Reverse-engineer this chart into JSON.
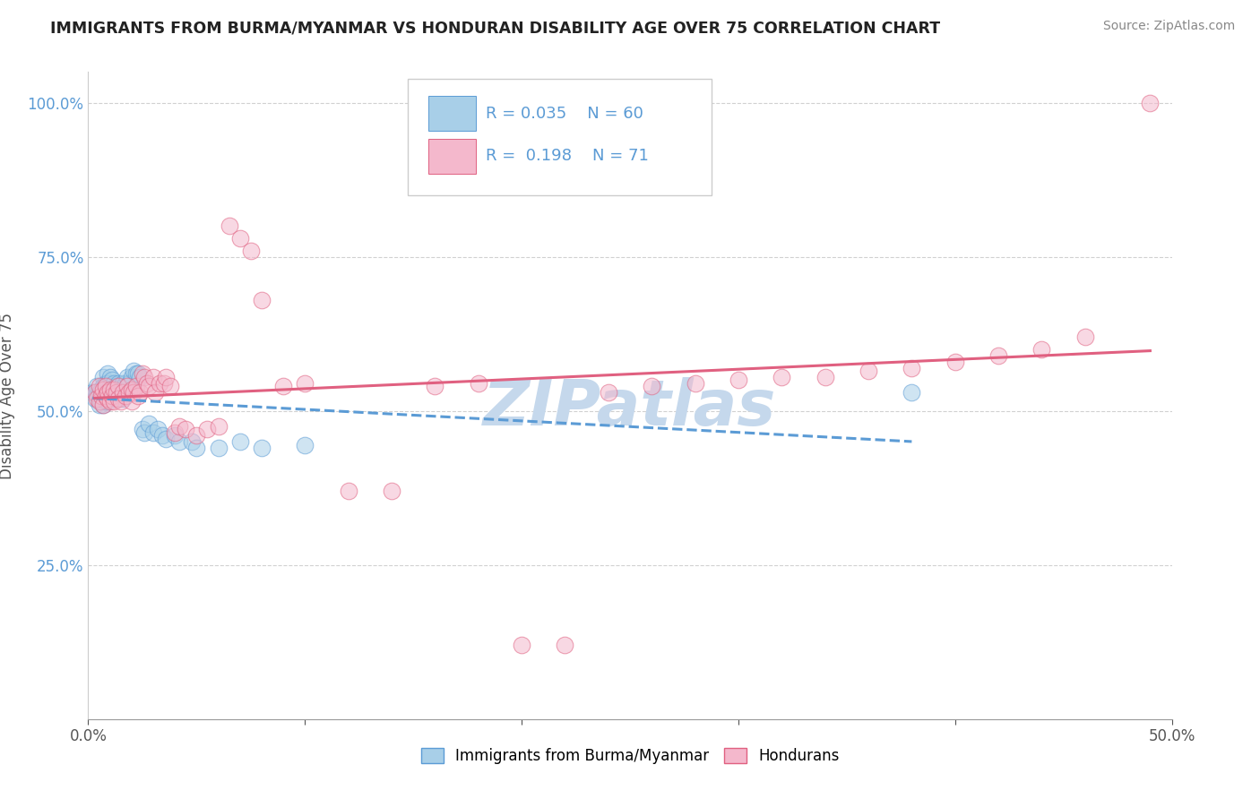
{
  "title": "IMMIGRANTS FROM BURMA/MYANMAR VS HONDURAN DISABILITY AGE OVER 75 CORRELATION CHART",
  "source": "Source: ZipAtlas.com",
  "ylabel": "Disability Age Over 75",
  "xlim": [
    0.0,
    0.5
  ],
  "ylim": [
    0.0,
    1.05
  ],
  "xtick_vals": [
    0.0,
    0.1,
    0.2,
    0.3,
    0.4,
    0.5
  ],
  "xtick_labels": [
    "0.0%",
    "",
    "",
    "",
    "",
    "50.0%"
  ],
  "ytick_vals": [
    0.25,
    0.5,
    0.75,
    1.0
  ],
  "ytick_labels": [
    "25.0%",
    "50.0%",
    "75.0%",
    "100.0%"
  ],
  "legend_blue_label": "Immigrants from Burma/Myanmar",
  "legend_pink_label": "Hondurans",
  "R_blue": "0.035",
  "N_blue": "60",
  "R_pink": "0.198",
  "N_pink": "71",
  "color_blue": "#a8cfe8",
  "color_pink": "#f4b8cc",
  "line_blue": "#5b9bd5",
  "line_pink": "#e06080",
  "watermark": "ZIPatlas",
  "watermark_color": "#c5d8ec",
  "blue_x": [
    0.002,
    0.003,
    0.003,
    0.004,
    0.004,
    0.005,
    0.005,
    0.005,
    0.006,
    0.006,
    0.006,
    0.007,
    0.007,
    0.007,
    0.007,
    0.008,
    0.008,
    0.008,
    0.009,
    0.009,
    0.009,
    0.009,
    0.01,
    0.01,
    0.01,
    0.011,
    0.011,
    0.012,
    0.012,
    0.013,
    0.013,
    0.014,
    0.014,
    0.015,
    0.016,
    0.016,
    0.017,
    0.018,
    0.019,
    0.02,
    0.021,
    0.022,
    0.023,
    0.024,
    0.025,
    0.026,
    0.028,
    0.03,
    0.032,
    0.034,
    0.036,
    0.04,
    0.042,
    0.048,
    0.05,
    0.06,
    0.07,
    0.08,
    0.1,
    0.38
  ],
  "blue_y": [
    0.53,
    0.53,
    0.52,
    0.53,
    0.54,
    0.52,
    0.53,
    0.51,
    0.525,
    0.535,
    0.515,
    0.555,
    0.54,
    0.525,
    0.51,
    0.545,
    0.53,
    0.515,
    0.56,
    0.545,
    0.53,
    0.515,
    0.555,
    0.54,
    0.525,
    0.55,
    0.535,
    0.545,
    0.525,
    0.54,
    0.52,
    0.545,
    0.53,
    0.535,
    0.52,
    0.545,
    0.545,
    0.555,
    0.545,
    0.555,
    0.565,
    0.56,
    0.56,
    0.555,
    0.47,
    0.465,
    0.48,
    0.465,
    0.47,
    0.46,
    0.455,
    0.46,
    0.45,
    0.45,
    0.44,
    0.44,
    0.45,
    0.44,
    0.445,
    0.53
  ],
  "pink_x": [
    0.003,
    0.004,
    0.005,
    0.005,
    0.006,
    0.007,
    0.007,
    0.008,
    0.008,
    0.009,
    0.009,
    0.01,
    0.01,
    0.011,
    0.012,
    0.012,
    0.013,
    0.014,
    0.014,
    0.015,
    0.016,
    0.017,
    0.018,
    0.019,
    0.02,
    0.02,
    0.021,
    0.022,
    0.023,
    0.024,
    0.025,
    0.026,
    0.027,
    0.028,
    0.03,
    0.031,
    0.033,
    0.035,
    0.036,
    0.038,
    0.04,
    0.042,
    0.045,
    0.05,
    0.055,
    0.06,
    0.065,
    0.07,
    0.075,
    0.08,
    0.09,
    0.1,
    0.12,
    0.14,
    0.16,
    0.18,
    0.2,
    0.22,
    0.24,
    0.26,
    0.28,
    0.3,
    0.32,
    0.34,
    0.36,
    0.38,
    0.4,
    0.42,
    0.44,
    0.46,
    0.49
  ],
  "pink_y": [
    0.53,
    0.52,
    0.54,
    0.515,
    0.525,
    0.51,
    0.535,
    0.525,
    0.54,
    0.52,
    0.53,
    0.515,
    0.535,
    0.525,
    0.515,
    0.535,
    0.53,
    0.54,
    0.52,
    0.515,
    0.53,
    0.525,
    0.54,
    0.53,
    0.515,
    0.535,
    0.53,
    0.54,
    0.525,
    0.53,
    0.56,
    0.555,
    0.545,
    0.54,
    0.555,
    0.53,
    0.545,
    0.545,
    0.555,
    0.54,
    0.465,
    0.475,
    0.47,
    0.46,
    0.47,
    0.475,
    0.8,
    0.78,
    0.76,
    0.68,
    0.54,
    0.545,
    0.37,
    0.37,
    0.54,
    0.545,
    0.12,
    0.12,
    0.53,
    0.54,
    0.545,
    0.55,
    0.555,
    0.555,
    0.565,
    0.57,
    0.58,
    0.59,
    0.6,
    0.62,
    1.0
  ]
}
